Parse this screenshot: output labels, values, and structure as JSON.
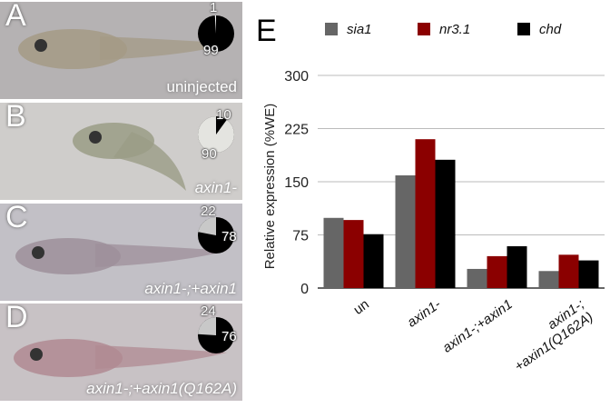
{
  "panels": [
    {
      "letter": "A",
      "label": "uninjected",
      "italic": false,
      "pie": {
        "black": 99,
        "other": 1
      },
      "pie_other_color": "#ffffff",
      "pie_main_color": "#000000",
      "nums": [
        "1",
        "99"
      ]
    },
    {
      "letter": "B",
      "label": "axin1-",
      "italic": true,
      "pie": {
        "black": 10,
        "other": 90
      },
      "pie_other_color": "#e4e4e0",
      "pie_main_color": "#000000",
      "nums": [
        "10",
        "90"
      ]
    },
    {
      "letter": "C",
      "label": "axin1-;+axin1",
      "italic": true,
      "pie": {
        "black": 78,
        "other": 22
      },
      "pie_other_color": "#c8c8c8",
      "pie_main_color": "#000000",
      "nums": [
        "22",
        "78"
      ]
    },
    {
      "letter": "D",
      "label": "axin1-;+axin1(Q162A)",
      "italic": true,
      "pie": {
        "black": 76,
        "other": 24
      },
      "pie_other_color": "#c8c8c8",
      "pie_main_color": "#000000",
      "nums": [
        "24",
        "76"
      ]
    }
  ],
  "chart_data": {
    "panel_letter": "E",
    "type": "bar",
    "categories": [
      "un",
      "axin1-",
      "axin1-;+axin1",
      "axin1-;\n+axin1(Q162A)"
    ],
    "series": [
      {
        "name": "sia1",
        "color": "#666666",
        "values": [
          99,
          159,
          27,
          24
        ]
      },
      {
        "name": "nr3.1",
        "color": "#8b0000",
        "values": [
          96,
          210,
          45,
          47
        ]
      },
      {
        "name": "chd",
        "color": "#000000",
        "values": [
          76,
          181,
          59,
          39
        ]
      }
    ],
    "ylabel": "Relative expression (%WE)",
    "xlabel": "",
    "ylim": [
      0,
      300
    ],
    "yticks": [
      0,
      75,
      150,
      225,
      300
    ],
    "grid": true,
    "legend": "top"
  }
}
